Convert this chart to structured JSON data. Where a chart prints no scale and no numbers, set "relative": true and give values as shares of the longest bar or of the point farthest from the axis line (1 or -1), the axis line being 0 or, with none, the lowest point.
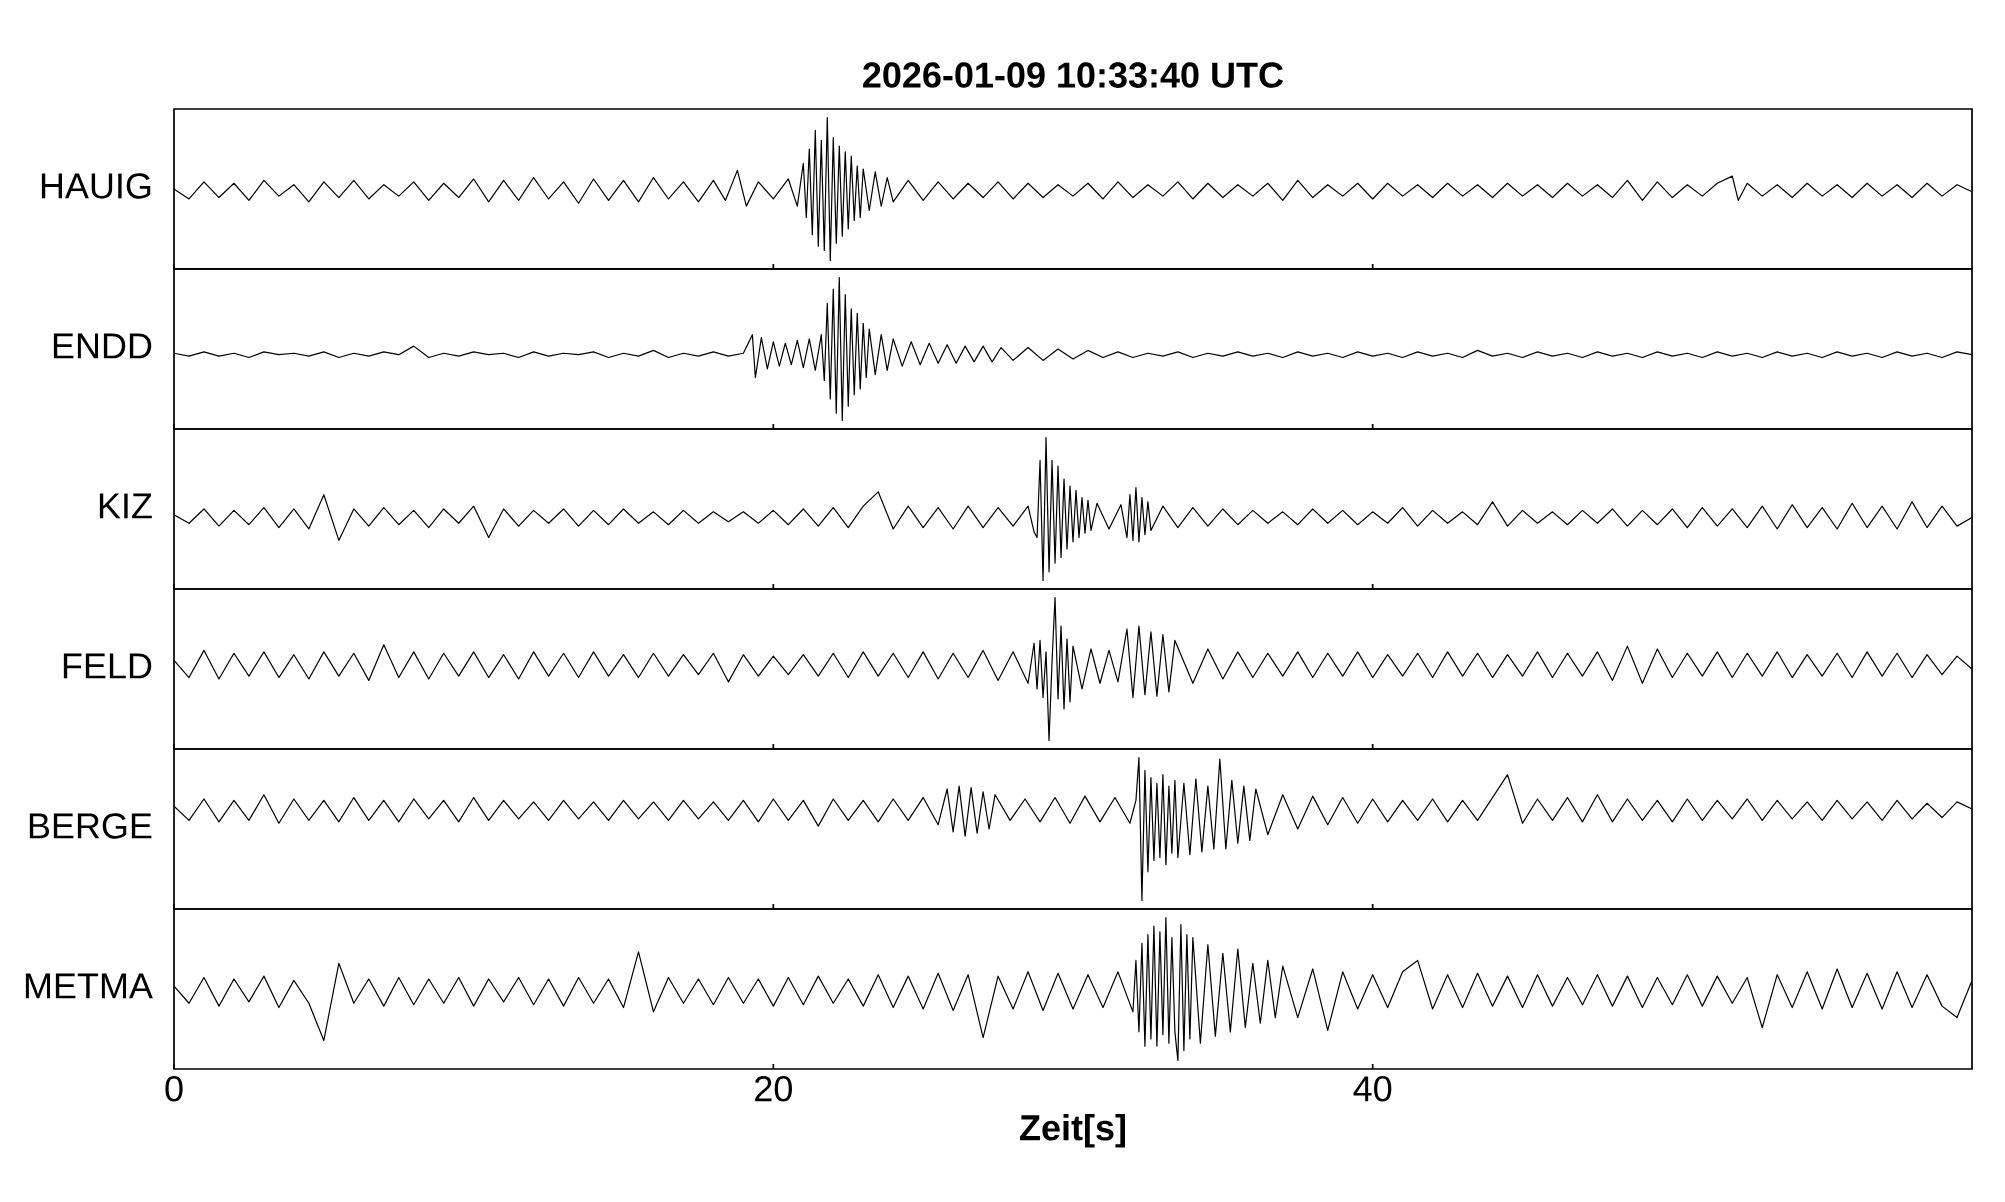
{
  "chart_data": [
    {
      "type": "line",
      "title": "2026-01-09  10:33:40 UTC",
      "ylabel": "HAUIG",
      "relative": true,
      "xlim": [
        0,
        60
      ],
      "xticks": [
        0,
        20,
        40
      ],
      "tick_labels": false,
      "x": [
        0,
        0.5,
        1,
        1.5,
        2,
        2.5,
        3,
        3.5,
        4,
        4.5,
        5,
        5.5,
        6,
        6.5,
        7,
        7.5,
        8,
        8.5,
        9,
        9.5,
        10,
        10.5,
        11,
        11.5,
        12,
        12.5,
        13,
        13.5,
        14,
        14.5,
        15,
        15.5,
        16,
        16.5,
        17,
        17.5,
        18,
        18.4,
        18.8,
        19.1,
        19.5,
        20,
        20.5,
        20.8,
        21,
        21.1,
        21.2,
        21.3,
        21.4,
        21.5,
        21.6,
        21.7,
        21.8,
        21.9,
        22,
        22.1,
        22.2,
        22.3,
        22.4,
        22.5,
        22.6,
        22.7,
        22.8,
        22.9,
        23,
        23.2,
        23.4,
        23.6,
        23.8,
        24,
        24.5,
        25,
        25.5,
        26,
        26.5,
        27,
        27.5,
        28,
        28.5,
        29,
        29.5,
        30,
        30.5,
        31,
        31.5,
        32,
        32.5,
        33,
        33.5,
        34,
        34.5,
        35,
        35.5,
        36,
        36.5,
        37,
        37.5,
        38,
        38.5,
        39,
        39.5,
        40,
        40.5,
        41,
        41.5,
        42,
        42.5,
        43,
        43.5,
        44,
        44.5,
        45,
        45.5,
        46,
        46.5,
        47,
        47.5,
        48,
        48.5,
        49,
        49.5,
        50,
        50.5,
        51,
        51.5,
        52,
        52.2,
        52.5,
        53,
        53.5,
        54,
        54.5,
        55,
        55.5,
        56,
        56.5,
        57,
        57.5,
        58,
        58.5,
        59,
        59.5,
        60
      ],
      "series": [
        {
          "color": "#000000",
          "values": [
            0.5,
            0.43,
            0.55,
            0.44,
            0.54,
            0.42,
            0.56,
            0.45,
            0.53,
            0.41,
            0.55,
            0.44,
            0.56,
            0.43,
            0.53,
            0.45,
            0.55,
            0.42,
            0.54,
            0.44,
            0.57,
            0.41,
            0.56,
            0.42,
            0.58,
            0.43,
            0.55,
            0.4,
            0.57,
            0.42,
            0.56,
            0.41,
            0.58,
            0.43,
            0.55,
            0.41,
            0.56,
            0.42,
            0.63,
            0.38,
            0.55,
            0.43,
            0.57,
            0.38,
            0.68,
            0.3,
            0.78,
            0.18,
            0.91,
            0.1,
            0.84,
            0.07,
            1.0,
            0.0,
            0.86,
            0.12,
            0.8,
            0.17,
            0.76,
            0.22,
            0.73,
            0.28,
            0.66,
            0.3,
            0.64,
            0.35,
            0.62,
            0.38,
            0.58,
            0.41,
            0.56,
            0.42,
            0.55,
            0.43,
            0.54,
            0.44,
            0.55,
            0.43,
            0.54,
            0.44,
            0.53,
            0.45,
            0.54,
            0.43,
            0.55,
            0.44,
            0.53,
            0.45,
            0.55,
            0.43,
            0.54,
            0.44,
            0.53,
            0.45,
            0.54,
            0.42,
            0.56,
            0.44,
            0.53,
            0.45,
            0.54,
            0.43,
            0.54,
            0.45,
            0.53,
            0.44,
            0.54,
            0.45,
            0.53,
            0.44,
            0.54,
            0.45,
            0.53,
            0.44,
            0.54,
            0.45,
            0.53,
            0.44,
            0.56,
            0.42,
            0.55,
            0.44,
            0.53,
            0.45,
            0.54,
            0.59,
            0.42,
            0.54,
            0.45,
            0.53,
            0.44,
            0.54,
            0.45,
            0.53,
            0.44,
            0.54,
            0.45,
            0.53,
            0.44,
            0.54,
            0.45,
            0.53,
            0.48
          ]
        }
      ]
    },
    {
      "type": "line",
      "ylabel": "ENDD",
      "relative": true,
      "xlim": [
        0,
        60
      ],
      "xticks": [
        0,
        20,
        40
      ],
      "tick_labels": false,
      "x": [
        0,
        0.5,
        1,
        1.5,
        2,
        2.5,
        3,
        3.5,
        4,
        4.5,
        5,
        5.5,
        6,
        6.5,
        7,
        7.5,
        8,
        8.5,
        9,
        9.5,
        10,
        10.5,
        11,
        11.5,
        12,
        12.5,
        13,
        13.5,
        14,
        14.5,
        15,
        15.5,
        16,
        16.5,
        17,
        17.5,
        18,
        18.5,
        19,
        19.3,
        19.4,
        19.6,
        19.8,
        20,
        20.2,
        20.4,
        20.6,
        20.8,
        21,
        21.2,
        21.4,
        21.6,
        21.7,
        21.8,
        21.9,
        22,
        22.1,
        22.2,
        22.3,
        22.4,
        22.5,
        22.6,
        22.7,
        22.8,
        22.9,
        23,
        23.1,
        23.2,
        23.4,
        23.6,
        23.8,
        24,
        24.3,
        24.6,
        24.9,
        25.2,
        25.5,
        25.8,
        26.1,
        26.4,
        26.7,
        27,
        27.3,
        27.6,
        28,
        28.5,
        29,
        29.5,
        30,
        30.5,
        31,
        31.5,
        32,
        32.5,
        33,
        33.5,
        34,
        34.5,
        35,
        35.5,
        36,
        36.5,
        37,
        37.5,
        38,
        38.5,
        39,
        39.5,
        40,
        40.5,
        41,
        41.5,
        42,
        42.5,
        43,
        43.5,
        44,
        44.5,
        45,
        45.5,
        46,
        46.5,
        47,
        47.5,
        48,
        48.5,
        49,
        49.5,
        50,
        50.5,
        51,
        51.5,
        52,
        52.5,
        53,
        53.5,
        54,
        54.5,
        55,
        55.5,
        56,
        56.5,
        57,
        57.5,
        58,
        58.5,
        59,
        59.5,
        60
      ],
      "series": [
        {
          "color": "#000000",
          "values": [
            0.47,
            0.45,
            0.48,
            0.45,
            0.47,
            0.44,
            0.48,
            0.46,
            0.47,
            0.45,
            0.48,
            0.44,
            0.47,
            0.45,
            0.48,
            0.46,
            0.52,
            0.44,
            0.47,
            0.45,
            0.48,
            0.46,
            0.47,
            0.44,
            0.48,
            0.45,
            0.47,
            0.46,
            0.48,
            0.44,
            0.47,
            0.45,
            0.49,
            0.44,
            0.47,
            0.45,
            0.48,
            0.45,
            0.47,
            0.6,
            0.3,
            0.58,
            0.36,
            0.55,
            0.38,
            0.54,
            0.39,
            0.56,
            0.37,
            0.57,
            0.35,
            0.6,
            0.28,
            0.82,
            0.15,
            0.92,
            0.05,
            1.0,
            0.0,
            0.88,
            0.1,
            0.78,
            0.18,
            0.75,
            0.22,
            0.68,
            0.3,
            0.64,
            0.32,
            0.6,
            0.35,
            0.57,
            0.38,
            0.55,
            0.39,
            0.54,
            0.4,
            0.53,
            0.4,
            0.52,
            0.41,
            0.52,
            0.41,
            0.51,
            0.42,
            0.51,
            0.42,
            0.5,
            0.43,
            0.49,
            0.44,
            0.48,
            0.44,
            0.47,
            0.45,
            0.48,
            0.44,
            0.47,
            0.45,
            0.48,
            0.45,
            0.47,
            0.44,
            0.48,
            0.45,
            0.47,
            0.44,
            0.48,
            0.45,
            0.47,
            0.44,
            0.48,
            0.45,
            0.47,
            0.44,
            0.49,
            0.45,
            0.47,
            0.44,
            0.48,
            0.45,
            0.47,
            0.44,
            0.48,
            0.45,
            0.47,
            0.44,
            0.48,
            0.45,
            0.47,
            0.44,
            0.48,
            0.45,
            0.47,
            0.44,
            0.48,
            0.45,
            0.47,
            0.44,
            0.48,
            0.45,
            0.47,
            0.44,
            0.48,
            0.45,
            0.47,
            0.44,
            0.48,
            0.46
          ]
        }
      ]
    },
    {
      "type": "line",
      "ylabel": "KIZ",
      "relative": true,
      "xlim": [
        0,
        60
      ],
      "xticks": [
        0,
        20,
        40
      ],
      "tick_labels": false,
      "x": [
        0,
        0.5,
        1,
        1.5,
        2,
        2.5,
        3,
        3.5,
        4,
        4.5,
        5,
        5.5,
        6,
        6.5,
        7,
        7.5,
        8,
        8.5,
        9,
        9.5,
        10,
        10.5,
        11,
        11.5,
        12,
        12.5,
        13,
        13.5,
        14,
        14.5,
        15,
        15.5,
        16,
        16.5,
        17,
        17.5,
        18,
        18.5,
        19,
        19.5,
        20,
        20.5,
        21,
        21.5,
        22,
        22.5,
        23,
        23.5,
        24,
        24.5,
        25,
        25.5,
        26,
        26.5,
        27,
        27.5,
        28,
        28.5,
        28.7,
        28.8,
        28.9,
        29,
        29.1,
        29.2,
        29.3,
        29.4,
        29.5,
        29.6,
        29.7,
        29.8,
        29.9,
        30,
        30.1,
        30.2,
        30.3,
        30.4,
        30.5,
        30.6,
        30.8,
        31.2,
        31.6,
        31.8,
        31.9,
        32,
        32.1,
        32.2,
        32.3,
        32.4,
        32.5,
        32.6,
        33,
        33.5,
        34,
        34.5,
        35,
        35.5,
        36,
        36.5,
        37,
        37.5,
        38,
        38.5,
        39,
        39.5,
        40,
        40.5,
        41,
        41.5,
        42,
        42.5,
        43,
        43.5,
        44,
        44.5,
        45,
        45.5,
        46,
        46.5,
        47,
        47.5,
        48,
        48.5,
        49,
        49.5,
        50,
        50.5,
        51,
        51.5,
        52,
        52.5,
        53,
        53.5,
        54,
        54.5,
        55,
        55.5,
        56,
        56.5,
        57,
        57.5,
        58,
        58.5,
        59,
        59.5,
        60
      ],
      "series": [
        {
          "color": "#000000",
          "values": [
            0.46,
            0.4,
            0.5,
            0.38,
            0.49,
            0.39,
            0.51,
            0.37,
            0.5,
            0.36,
            0.6,
            0.28,
            0.5,
            0.38,
            0.51,
            0.39,
            0.49,
            0.37,
            0.5,
            0.4,
            0.52,
            0.3,
            0.5,
            0.38,
            0.49,
            0.4,
            0.5,
            0.38,
            0.49,
            0.39,
            0.5,
            0.4,
            0.48,
            0.39,
            0.49,
            0.4,
            0.48,
            0.41,
            0.48,
            0.4,
            0.49,
            0.39,
            0.5,
            0.38,
            0.51,
            0.37,
            0.52,
            0.62,
            0.36,
            0.52,
            0.37,
            0.51,
            0.36,
            0.52,
            0.37,
            0.51,
            0.38,
            0.52,
            0.34,
            0.3,
            0.84,
            0.0,
            1.0,
            0.06,
            0.84,
            0.12,
            0.8,
            0.16,
            0.71,
            0.22,
            0.66,
            0.27,
            0.63,
            0.3,
            0.58,
            0.33,
            0.56,
            0.35,
            0.54,
            0.36,
            0.53,
            0.3,
            0.6,
            0.28,
            0.65,
            0.27,
            0.58,
            0.32,
            0.55,
            0.35,
            0.52,
            0.37,
            0.51,
            0.38,
            0.5,
            0.39,
            0.49,
            0.4,
            0.48,
            0.39,
            0.5,
            0.4,
            0.49,
            0.39,
            0.48,
            0.4,
            0.51,
            0.38,
            0.49,
            0.4,
            0.48,
            0.39,
            0.55,
            0.38,
            0.49,
            0.4,
            0.48,
            0.39,
            0.49,
            0.4,
            0.5,
            0.38,
            0.49,
            0.39,
            0.5,
            0.37,
            0.51,
            0.38,
            0.5,
            0.37,
            0.52,
            0.36,
            0.53,
            0.37,
            0.51,
            0.36,
            0.54,
            0.37,
            0.52,
            0.36,
            0.55,
            0.37,
            0.52,
            0.38,
            0.44
          ]
        }
      ]
    },
    {
      "type": "line",
      "ylabel": "FELD",
      "relative": true,
      "xlim": [
        0,
        60
      ],
      "xticks": [
        0,
        20,
        40
      ],
      "tick_labels": false,
      "x": [
        0,
        0.5,
        1,
        1.5,
        2,
        2.5,
        3,
        3.5,
        4,
        4.5,
        5,
        5.5,
        6,
        6.5,
        7,
        7.5,
        8,
        8.5,
        9,
        9.5,
        10,
        10.5,
        11,
        11.5,
        12,
        12.5,
        13,
        13.5,
        14,
        14.5,
        15,
        15.5,
        16,
        16.5,
        17,
        17.5,
        18,
        18.5,
        19,
        19.5,
        20,
        20.5,
        21,
        21.5,
        22,
        22.5,
        23,
        23.5,
        24,
        24.5,
        25,
        25.5,
        26,
        26.5,
        27,
        27.5,
        28,
        28.5,
        28.7,
        28.8,
        28.9,
        29,
        29.1,
        29.2,
        29.3,
        29.4,
        29.5,
        29.6,
        29.7,
        29.8,
        29.9,
        30,
        30.3,
        30.6,
        30.9,
        31.2,
        31.5,
        31.8,
        32,
        32.2,
        32.4,
        32.6,
        32.8,
        33,
        33.2,
        33.4,
        34,
        34.5,
        35,
        35.5,
        36,
        36.5,
        37,
        37.5,
        38,
        38.5,
        39,
        39.5,
        40,
        40.5,
        41,
        41.5,
        42,
        42.5,
        43,
        43.5,
        44,
        44.5,
        45,
        45.5,
        46,
        46.5,
        47,
        47.5,
        48,
        48.5,
        49,
        49.5,
        50,
        50.5,
        51,
        51.5,
        52,
        52.5,
        53,
        53.5,
        54,
        54.5,
        55,
        55.5,
        56,
        56.5,
        57,
        57.5,
        58,
        58.5,
        59,
        59.5,
        60
      ],
      "series": [
        {
          "color": "#000000",
          "values": [
            0.56,
            0.44,
            0.63,
            0.43,
            0.61,
            0.45,
            0.62,
            0.44,
            0.6,
            0.43,
            0.62,
            0.45,
            0.61,
            0.42,
            0.67,
            0.44,
            0.62,
            0.43,
            0.61,
            0.45,
            0.62,
            0.44,
            0.6,
            0.43,
            0.62,
            0.45,
            0.61,
            0.44,
            0.62,
            0.45,
            0.6,
            0.44,
            0.61,
            0.45,
            0.6,
            0.46,
            0.61,
            0.41,
            0.6,
            0.45,
            0.59,
            0.46,
            0.6,
            0.45,
            0.61,
            0.44,
            0.62,
            0.45,
            0.61,
            0.44,
            0.62,
            0.43,
            0.61,
            0.44,
            0.63,
            0.42,
            0.62,
            0.4,
            0.68,
            0.36,
            0.7,
            0.3,
            0.62,
            0.0,
            0.55,
            1.0,
            0.29,
            0.8,
            0.22,
            0.71,
            0.27,
            0.66,
            0.36,
            0.64,
            0.4,
            0.63,
            0.41,
            0.78,
            0.3,
            0.8,
            0.32,
            0.76,
            0.31,
            0.74,
            0.34,
            0.7,
            0.4,
            0.64,
            0.43,
            0.62,
            0.44,
            0.61,
            0.45,
            0.62,
            0.44,
            0.61,
            0.45,
            0.62,
            0.44,
            0.6,
            0.45,
            0.61,
            0.44,
            0.62,
            0.45,
            0.61,
            0.44,
            0.6,
            0.45,
            0.62,
            0.44,
            0.61,
            0.45,
            0.62,
            0.42,
            0.66,
            0.4,
            0.64,
            0.44,
            0.61,
            0.45,
            0.62,
            0.44,
            0.61,
            0.45,
            0.62,
            0.44,
            0.6,
            0.45,
            0.61,
            0.44,
            0.62,
            0.45,
            0.61,
            0.44,
            0.6,
            0.46,
            0.59,
            0.5
          ]
        }
      ]
    },
    {
      "type": "line",
      "ylabel": "BERGE",
      "relative": true,
      "xlim": [
        0,
        60
      ],
      "xticks": [
        0,
        20,
        40
      ],
      "tick_labels": false,
      "x": [
        0,
        0.5,
        1,
        1.5,
        2,
        2.5,
        3,
        3.5,
        4,
        4.5,
        5,
        5.5,
        6,
        6.5,
        7,
        7.5,
        8,
        8.5,
        9,
        9.5,
        10,
        10.5,
        11,
        11.5,
        12,
        12.5,
        13,
        13.5,
        14,
        14.5,
        15,
        15.5,
        16,
        16.5,
        17,
        17.5,
        18,
        18.5,
        19,
        19.5,
        20,
        20.5,
        21,
        21.5,
        22,
        22.5,
        23,
        23.5,
        24,
        24.5,
        25,
        25.5,
        25.8,
        26,
        26.2,
        26.4,
        26.6,
        26.8,
        27,
        27.2,
        27.4,
        27.9,
        28.4,
        28.9,
        29.4,
        29.9,
        30.4,
        30.9,
        31.4,
        31.9,
        32.1,
        32.2,
        32.3,
        32.4,
        32.5,
        32.6,
        32.7,
        32.8,
        32.9,
        33,
        33.1,
        33.2,
        33.3,
        33.4,
        33.5,
        33.7,
        33.9,
        34.1,
        34.3,
        34.5,
        34.7,
        34.9,
        35.1,
        35.3,
        35.5,
        35.7,
        35.9,
        36.1,
        36.5,
        37,
        37.5,
        38,
        38.5,
        39,
        39.5,
        40,
        40.5,
        41,
        41.5,
        42,
        42.5,
        43,
        43.5,
        44,
        44.5,
        45,
        45.5,
        46,
        46.5,
        47,
        47.5,
        48,
        48.5,
        49,
        49.5,
        50,
        50.5,
        51,
        51.5,
        52,
        52.5,
        53,
        53.5,
        54,
        54.5,
        55,
        55.5,
        56,
        56.5,
        57,
        57.5,
        58,
        58.5,
        59,
        59.5,
        60
      ],
      "series": [
        {
          "color": "#000000",
          "values": [
            0.66,
            0.56,
            0.71,
            0.55,
            0.7,
            0.56,
            0.74,
            0.54,
            0.71,
            0.56,
            0.7,
            0.55,
            0.72,
            0.56,
            0.7,
            0.55,
            0.71,
            0.57,
            0.7,
            0.55,
            0.72,
            0.56,
            0.7,
            0.57,
            0.69,
            0.56,
            0.7,
            0.57,
            0.69,
            0.56,
            0.7,
            0.57,
            0.69,
            0.56,
            0.7,
            0.57,
            0.69,
            0.56,
            0.7,
            0.55,
            0.71,
            0.56,
            0.7,
            0.52,
            0.71,
            0.56,
            0.7,
            0.55,
            0.71,
            0.56,
            0.72,
            0.53,
            0.78,
            0.48,
            0.8,
            0.45,
            0.79,
            0.47,
            0.76,
            0.5,
            0.74,
            0.56,
            0.71,
            0.55,
            0.72,
            0.54,
            0.73,
            0.55,
            0.72,
            0.54,
            0.7,
            1.0,
            0.0,
            0.91,
            0.2,
            0.86,
            0.28,
            0.82,
            0.3,
            0.88,
            0.25,
            0.8,
            0.33,
            0.84,
            0.3,
            0.82,
            0.32,
            0.85,
            0.34,
            0.8,
            0.36,
            0.99,
            0.36,
            0.84,
            0.4,
            0.8,
            0.42,
            0.78,
            0.46,
            0.74,
            0.5,
            0.73,
            0.53,
            0.72,
            0.54,
            0.71,
            0.55,
            0.7,
            0.56,
            0.71,
            0.55,
            0.7,
            0.56,
            0.72,
            0.88,
            0.54,
            0.71,
            0.56,
            0.72,
            0.55,
            0.74,
            0.55,
            0.71,
            0.56,
            0.7,
            0.55,
            0.71,
            0.56,
            0.7,
            0.57,
            0.71,
            0.56,
            0.7,
            0.57,
            0.69,
            0.56,
            0.7,
            0.57,
            0.69,
            0.56,
            0.7,
            0.57,
            0.68,
            0.58,
            0.69,
            0.64
          ]
        }
      ]
    },
    {
      "type": "line",
      "ylabel": "METMA",
      "xlabel": "Zeit[s]",
      "relative": true,
      "xlim": [
        0,
        60
      ],
      "xticks": [
        0,
        20,
        40
      ],
      "tick_labels": "x",
      "x": [
        0,
        0.5,
        1,
        1.5,
        2,
        2.5,
        3,
        3.5,
        4,
        4.5,
        5,
        5.5,
        6,
        6.5,
        7,
        7.5,
        8,
        8.5,
        9,
        9.5,
        10,
        10.5,
        11,
        11.5,
        12,
        12.5,
        13,
        13.5,
        14,
        14.5,
        15,
        15.5,
        16,
        16.5,
        17,
        17.5,
        18,
        18.5,
        19,
        19.5,
        20,
        20.5,
        21,
        21.5,
        22,
        22.5,
        23,
        23.5,
        24,
        24.5,
        25,
        25.5,
        26,
        26.5,
        27,
        27.5,
        28,
        28.5,
        29,
        29.5,
        30,
        30.5,
        31,
        31.5,
        32,
        32.1,
        32.2,
        32.3,
        32.4,
        32.5,
        32.6,
        32.7,
        32.8,
        32.9,
        33,
        33.1,
        33.2,
        33.3,
        33.4,
        33.5,
        33.6,
        33.7,
        33.8,
        33.9,
        34,
        34.25,
        34.5,
        34.75,
        35,
        35.25,
        35.5,
        35.75,
        36,
        36.25,
        36.5,
        36.75,
        37,
        37.5,
        38,
        38.5,
        39,
        39.5,
        40,
        40.5,
        41,
        41.5,
        42,
        42.5,
        43,
        43.5,
        44,
        44.5,
        45,
        45.5,
        46,
        46.5,
        47,
        47.5,
        48,
        48.5,
        49,
        49.5,
        50,
        50.5,
        51,
        51.5,
        52,
        52.5,
        53,
        53.5,
        54,
        54.5,
        55,
        55.5,
        56,
        56.5,
        57,
        57.5,
        58,
        58.5,
        59,
        59.5,
        60
      ],
      "series": [
        {
          "color": "#000000",
          "values": [
            0.52,
            0.4,
            0.58,
            0.38,
            0.57,
            0.41,
            0.59,
            0.37,
            0.56,
            0.4,
            0.14,
            0.68,
            0.4,
            0.57,
            0.38,
            0.58,
            0.39,
            0.57,
            0.4,
            0.58,
            0.38,
            0.57,
            0.41,
            0.58,
            0.39,
            0.57,
            0.38,
            0.58,
            0.4,
            0.57,
            0.37,
            0.76,
            0.34,
            0.58,
            0.4,
            0.57,
            0.39,
            0.58,
            0.4,
            0.57,
            0.38,
            0.58,
            0.39,
            0.59,
            0.4,
            0.57,
            0.38,
            0.6,
            0.37,
            0.59,
            0.36,
            0.61,
            0.35,
            0.6,
            0.16,
            0.59,
            0.36,
            0.62,
            0.35,
            0.61,
            0.36,
            0.6,
            0.37,
            0.62,
            0.34,
            0.7,
            0.2,
            0.82,
            0.1,
            0.88,
            0.15,
            0.94,
            0.1,
            0.9,
            0.18,
            1.0,
            0.12,
            0.86,
            0.2,
            0.0,
            0.95,
            0.07,
            0.88,
            0.15,
            0.86,
            0.12,
            0.81,
            0.17,
            0.75,
            0.2,
            0.78,
            0.23,
            0.68,
            0.26,
            0.7,
            0.3,
            0.66,
            0.3,
            0.64,
            0.21,
            0.62,
            0.36,
            0.6,
            0.37,
            0.62,
            0.7,
            0.36,
            0.6,
            0.37,
            0.61,
            0.38,
            0.59,
            0.37,
            0.6,
            0.38,
            0.58,
            0.39,
            0.6,
            0.38,
            0.59,
            0.37,
            0.58,
            0.39,
            0.6,
            0.38,
            0.59,
            0.4,
            0.58,
            0.23,
            0.6,
            0.37,
            0.62,
            0.36,
            0.64,
            0.37,
            0.61,
            0.36,
            0.62,
            0.37,
            0.6,
            0.38,
            0.3,
            0.56
          ]
        }
      ]
    }
  ]
}
